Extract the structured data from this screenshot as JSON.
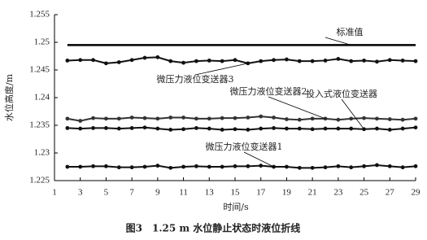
{
  "chart_data": {
    "type": "line",
    "title": "图3　1.25 m 水位静止状态时液位折线",
    "x_label": "时间/s",
    "y_label": "水位高度/m",
    "x": [
      2,
      3,
      4,
      5,
      6,
      7,
      8,
      9,
      10,
      11,
      12,
      13,
      14,
      15,
      16,
      17,
      18,
      19,
      20,
      21,
      22,
      23,
      24,
      25,
      26,
      27,
      28,
      29
    ],
    "xlim": [
      1,
      29
    ],
    "xticks": [
      1,
      3,
      5,
      7,
      9,
      11,
      13,
      15,
      17,
      19,
      21,
      23,
      25,
      27,
      29
    ],
    "ylim": [
      1.225,
      1.255
    ],
    "yticks": [
      1.225,
      1.23,
      1.235,
      1.24,
      1.245,
      1.25,
      1.255
    ],
    "grid": false,
    "series": [
      {
        "name": "标准值",
        "color": "#000000",
        "markers": false,
        "values": [
          1.2495,
          1.2495,
          1.2495,
          1.2495,
          1.2495,
          1.2495,
          1.2495,
          1.2495,
          1.2495,
          1.2495,
          1.2495,
          1.2495,
          1.2495,
          1.2495,
          1.2495,
          1.2495,
          1.2495,
          1.2495,
          1.2495,
          1.2495,
          1.2495,
          1.2495,
          1.2495,
          1.2495,
          1.2495,
          1.2495,
          1.2495,
          1.2495
        ]
      },
      {
        "name": "微压力液位变送器3",
        "color": "#111111",
        "markers": true,
        "values": [
          1.2467,
          1.2468,
          1.2468,
          1.2462,
          1.2464,
          1.2468,
          1.2472,
          1.2473,
          1.2466,
          1.2463,
          1.2466,
          1.2467,
          1.2466,
          1.2468,
          1.2462,
          1.2466,
          1.2468,
          1.2469,
          1.2466,
          1.2466,
          1.2467,
          1.247,
          1.2466,
          1.2467,
          1.2465,
          1.2468,
          1.2467,
          1.2466
        ]
      },
      {
        "name": "微压力液位变送器2",
        "color": "#333333",
        "markers": true,
        "values": [
          1.2362,
          1.2358,
          1.2363,
          1.2362,
          1.2362,
          1.2364,
          1.2363,
          1.2362,
          1.2364,
          1.2364,
          1.2362,
          1.2362,
          1.2363,
          1.2363,
          1.2364,
          1.2366,
          1.2364,
          1.2361,
          1.236,
          1.2362,
          1.2362,
          1.236,
          1.2362,
          1.2363,
          1.2362,
          1.2361,
          1.236,
          1.2362
        ]
      },
      {
        "name": "投入式液位变送器",
        "color": "#111111",
        "markers": true,
        "values": [
          1.2345,
          1.2344,
          1.2345,
          1.2345,
          1.2344,
          1.2345,
          1.2346,
          1.2344,
          1.2342,
          1.2343,
          1.2345,
          1.2344,
          1.2342,
          1.2343,
          1.2342,
          1.2344,
          1.2345,
          1.2344,
          1.2344,
          1.2343,
          1.2344,
          1.2344,
          1.2344,
          1.2343,
          1.2344,
          1.2342,
          1.2344,
          1.2346
        ]
      },
      {
        "name": "微压力液位变送器1",
        "color": "#111111",
        "markers": true,
        "values": [
          1.2275,
          1.2275,
          1.2276,
          1.2276,
          1.2274,
          1.2274,
          1.2275,
          1.2277,
          1.2273,
          1.2275,
          1.2276,
          1.2275,
          1.2275,
          1.2276,
          1.2276,
          1.2277,
          1.2275,
          1.2275,
          1.2273,
          1.2273,
          1.2274,
          1.2276,
          1.2274,
          1.2276,
          1.2278,
          1.2276,
          1.2274,
          1.2276
        ]
      }
    ]
  }
}
